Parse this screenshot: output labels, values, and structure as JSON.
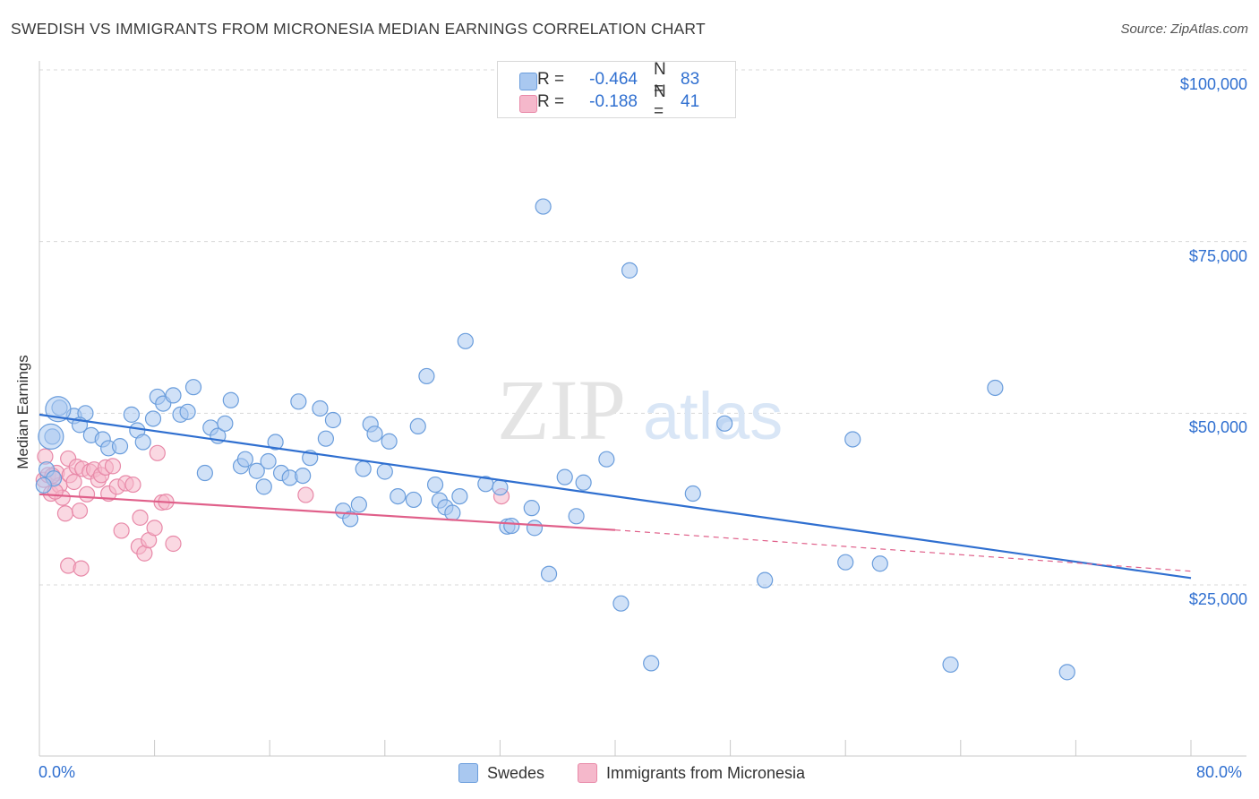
{
  "chart_data": {
    "type": "scatter",
    "title": "SWEDISH VS IMMIGRANTS FROM MICRONESIA MEDIAN EARNINGS CORRELATION CHART",
    "source": "Source: ZipAtlas.com",
    "xlabel": "",
    "ylabel": "Median Earnings",
    "xlim": [
      0,
      80
    ],
    "ylim": [
      0,
      105000
    ],
    "x_tick_labels": {
      "min": "0.0%",
      "max": "80.0%"
    },
    "y_ticks": [
      25000,
      50000,
      75000,
      100000
    ],
    "y_tick_labels": [
      "$25,000",
      "$50,000",
      "$75,000",
      "$100,000"
    ],
    "grid": true,
    "watermark": "ZIPatlas",
    "legend": {
      "rows": [
        {
          "r_label": "R =",
          "r_value": "-0.464",
          "n_label": "N =",
          "n_value": "83",
          "color": "#a9c8f0"
        },
        {
          "r_label": "R =",
          "r_value": "-0.188",
          "n_label": "N =",
          "n_value": "41",
          "color": "#f5b8cb"
        }
      ]
    },
    "series": [
      {
        "name": "Swedes",
        "color": "#a9c8f0",
        "stroke": "#6a9ddc",
        "trend": {
          "x0": 0,
          "y0": 49800,
          "x1": 80,
          "y1": 26000,
          "color": "#2f6fd0"
        },
        "points": [
          [
            1.4,
            50800
          ],
          [
            0.9,
            46600
          ],
          [
            2.4,
            49600
          ],
          [
            3.2,
            50000
          ],
          [
            2.8,
            48300
          ],
          [
            3.6,
            46800
          ],
          [
            4.4,
            46200
          ],
          [
            4.8,
            44900
          ],
          [
            5.6,
            45200
          ],
          [
            6.4,
            49800
          ],
          [
            6.8,
            47500
          ],
          [
            7.2,
            45800
          ],
          [
            7.9,
            49200
          ],
          [
            8.2,
            52400
          ],
          [
            8.6,
            51400
          ],
          [
            9.3,
            52600
          ],
          [
            9.8,
            49800
          ],
          [
            10.3,
            50200
          ],
          [
            10.7,
            53800
          ],
          [
            11.5,
            41300
          ],
          [
            11.9,
            47900
          ],
          [
            12.4,
            46700
          ],
          [
            12.9,
            48500
          ],
          [
            13.3,
            51900
          ],
          [
            14.0,
            42300
          ],
          [
            14.3,
            43300
          ],
          [
            15.1,
            41600
          ],
          [
            15.6,
            39300
          ],
          [
            15.9,
            43000
          ],
          [
            16.4,
            45800
          ],
          [
            16.8,
            41300
          ],
          [
            17.4,
            40600
          ],
          [
            18.0,
            51700
          ],
          [
            18.3,
            40900
          ],
          [
            18.8,
            43500
          ],
          [
            19.5,
            50700
          ],
          [
            19.9,
            46300
          ],
          [
            20.4,
            49000
          ],
          [
            21.1,
            35800
          ],
          [
            21.6,
            34600
          ],
          [
            22.2,
            36700
          ],
          [
            22.5,
            41900
          ],
          [
            23.0,
            48400
          ],
          [
            23.3,
            47000
          ],
          [
            24.0,
            41500
          ],
          [
            24.3,
            45900
          ],
          [
            24.9,
            37900
          ],
          [
            26.0,
            37400
          ],
          [
            26.3,
            48100
          ],
          [
            26.9,
            55400
          ],
          [
            27.5,
            39600
          ],
          [
            27.8,
            37300
          ],
          [
            28.2,
            36300
          ],
          [
            28.7,
            35500
          ],
          [
            29.2,
            37900
          ],
          [
            29.6,
            60500
          ],
          [
            31.0,
            39700
          ],
          [
            32.0,
            39200
          ],
          [
            32.5,
            33500
          ],
          [
            32.8,
            33600
          ],
          [
            34.2,
            36200
          ],
          [
            34.4,
            33300
          ],
          [
            35.0,
            80100
          ],
          [
            35.4,
            26600
          ],
          [
            36.5,
            40700
          ],
          [
            37.3,
            35000
          ],
          [
            37.8,
            39900
          ],
          [
            39.4,
            43300
          ],
          [
            40.4,
            22300
          ],
          [
            41.0,
            70800
          ],
          [
            42.5,
            13600
          ],
          [
            45.4,
            38300
          ],
          [
            47.6,
            48500
          ],
          [
            50.4,
            25700
          ],
          [
            56.0,
            28300
          ],
          [
            56.5,
            46200
          ],
          [
            58.4,
            28100
          ],
          [
            63.3,
            13400
          ],
          [
            66.4,
            53700
          ],
          [
            71.4,
            12300
          ],
          [
            0.5,
            41800
          ],
          [
            1.0,
            40500
          ],
          [
            0.3,
            39500
          ]
        ],
        "big_points": [
          [
            1.3,
            50600
          ],
          [
            0.8,
            46600
          ]
        ]
      },
      {
        "name": "Immigrants from Micronesia",
        "color": "#f5b8cb",
        "stroke": "#e889a8",
        "trend": {
          "x0": 0,
          "y0": 38200,
          "x1": 40,
          "y1": 33000,
          "color": "#e0608a",
          "dash_x1": 80,
          "dash_y1": 27000
        },
        "points": [
          [
            0.3,
            40300
          ],
          [
            0.6,
            41000
          ],
          [
            0.8,
            38300
          ],
          [
            1.2,
            41300
          ],
          [
            1.4,
            39500
          ],
          [
            1.6,
            37700
          ],
          [
            1.8,
            35400
          ],
          [
            2.0,
            43400
          ],
          [
            2.1,
            41000
          ],
          [
            2.4,
            40000
          ],
          [
            2.6,
            42200
          ],
          [
            2.8,
            35800
          ],
          [
            3.0,
            41900
          ],
          [
            3.3,
            38200
          ],
          [
            3.5,
            41500
          ],
          [
            3.8,
            41800
          ],
          [
            4.1,
            40300
          ],
          [
            4.3,
            41000
          ],
          [
            4.6,
            42100
          ],
          [
            4.8,
            38300
          ],
          [
            5.1,
            42300
          ],
          [
            5.4,
            39300
          ],
          [
            5.7,
            32900
          ],
          [
            6.0,
            39800
          ],
          [
            6.5,
            39600
          ],
          [
            6.9,
            30600
          ],
          [
            7.3,
            29600
          ],
          [
            7.6,
            31500
          ],
          [
            8.0,
            33300
          ],
          [
            8.2,
            44200
          ],
          [
            8.5,
            37000
          ],
          [
            8.8,
            37100
          ],
          [
            9.3,
            31000
          ],
          [
            2.0,
            27800
          ],
          [
            2.9,
            27400
          ],
          [
            7.0,
            34800
          ],
          [
            18.5,
            38100
          ],
          [
            32.1,
            37900
          ],
          [
            0.4,
            43700
          ],
          [
            1.1,
            38600
          ],
          [
            0.9,
            40900
          ]
        ],
        "big_points": []
      }
    ]
  },
  "legend_bottom": [
    {
      "label": "Swedes",
      "color": "#a9c8f0"
    },
    {
      "label": "Immigrants from Micronesia",
      "color": "#f5b8cb"
    }
  ]
}
